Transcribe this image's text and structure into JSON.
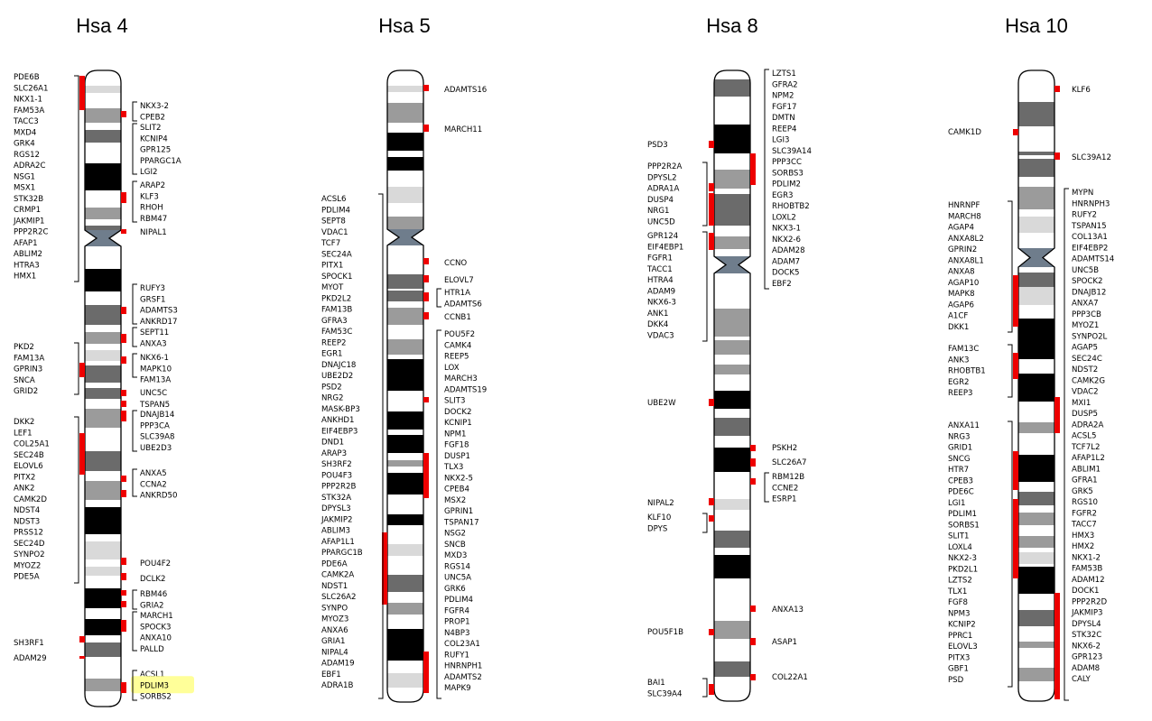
{
  "figure": {
    "chromosomes": [
      {
        "id": "hsa4",
        "title": "Hsa 4",
        "left_groups": [
          {
            "genes": [
              "PDE6B",
              "SLC26A1",
              "NKX1-1",
              "FAM53A",
              "TACC3",
              "MXD4",
              "GRK4",
              "RGS12",
              "ADRA2C",
              "NSG1",
              "MSX1",
              "STK32B",
              "CRMP1",
              "JAKMIP1",
              "PPP2R2C",
              "AFAP1",
              "ABLIM2",
              "HTRA3",
              "HMX1"
            ]
          },
          {
            "genes": [
              "PKD2",
              "FAM13A",
              "GPRIN3",
              "SNCA",
              "GRID2"
            ]
          },
          {
            "genes": [
              "DKK2",
              "LEF1",
              "COL25A1",
              "SEC24B",
              "ELOVL6",
              "PITX2",
              "ANK2",
              "CAMK2D",
              "NDST4",
              "NDST3",
              "PRSS12",
              "SEC24D",
              "SYNPO2",
              "MYOZ2",
              "PDE5A"
            ]
          },
          {
            "genes": [
              "SH3RF1"
            ]
          },
          {
            "genes": [
              "ADAM29"
            ]
          }
        ],
        "right_groups": [
          {
            "genes": [
              "NKX3-2",
              "CPEB2"
            ]
          },
          {
            "genes": [
              "SLIT2",
              "KCNIP4",
              "GPR125",
              "PPARGC1A",
              "LGI2"
            ]
          },
          {
            "genes": [
              "ARAP2",
              "KLF3",
              "RHOH",
              "RBM47"
            ]
          },
          {
            "genes": [
              "NIPAL1"
            ]
          },
          {
            "genes": [
              "RUFY3",
              "GRSF1",
              "ADAMTS3",
              "ANKRD17"
            ]
          },
          {
            "genes": [
              "SEPT11",
              "ANXA3"
            ]
          },
          {
            "genes": [
              "NKX6-1",
              "MAPK10",
              "FAM13A"
            ]
          },
          {
            "genes": [
              "UNC5C"
            ]
          },
          {
            "genes": [
              "TSPAN5"
            ]
          },
          {
            "genes": [
              "DNAJB14",
              "PPP3CA",
              "SLC39A8",
              "UBE2D3"
            ]
          },
          {
            "genes": [
              "ANXA5",
              "CCNA2",
              "ANKRD50"
            ]
          },
          {
            "genes": [
              "POU4F2"
            ]
          },
          {
            "genes": [
              "DCLK2"
            ]
          },
          {
            "genes": [
              "RBM46",
              "GRIA2"
            ]
          },
          {
            "genes": [
              "MARCH1",
              "SPOCK3",
              "ANXA10",
              "PALLD"
            ]
          },
          {
            "genes": [
              "ACSL1",
              "PDLIM3",
              "SORBS2"
            ]
          }
        ]
      },
      {
        "id": "hsa5",
        "title": "Hsa 5",
        "left_groups": [
          {
            "genes": [
              "ACSL6",
              "PDLIM4",
              "SEPT8",
              "VDAC1",
              "TCF7",
              "SEC24A",
              "PITX1",
              "SPOCK1",
              "MYOT",
              "PKD2L2",
              "FAM13B",
              "GFRA3",
              "FAM53C",
              "REEP2",
              "EGR1",
              "DNAJC18",
              "UBE2D2",
              "PSD2",
              "NRG2",
              "MASK-BP3",
              "ANKHD1",
              "EIF4EBP3",
              "DND1",
              "ARAP3",
              "SH3RF2",
              "POU4F3",
              "PPP2R2B",
              "STK32A",
              "DPYSL3",
              "JAKMIP2",
              "ABLIM3",
              "AFAP1L1",
              "PPARGC1B",
              "PDE6A",
              "CAMK2A",
              "NDST1",
              "SLC26A2",
              "SYNPO",
              "MYOZ3",
              "ANXA6",
              "GRIA1",
              "NIPAL4",
              "ADAM19",
              "EBF1",
              "ADRA1B"
            ]
          }
        ],
        "right_groups": [
          {
            "genes": [
              "ADAMTS16"
            ]
          },
          {
            "genes": [
              "MARCH11"
            ]
          },
          {
            "genes": [
              "CCNO"
            ]
          },
          {
            "genes": [
              "ELOVL7"
            ]
          },
          {
            "genes": [
              "HTR1A",
              "ADAMTS6"
            ]
          },
          {
            "genes": [
              "CCNB1"
            ]
          },
          {
            "genes": [
              "POU5F2",
              "CAMK4",
              "REEP5",
              "LOX",
              "MARCH3",
              "ADAMTS19",
              "SLIT3",
              "DOCK2",
              "KCNIP1",
              "NPM1",
              "FGF18",
              "DUSP1",
              "TLX3",
              "NKX2-5",
              "CPEB4",
              "MSX2",
              "GPRIN1",
              "TSPAN17",
              "NSG2",
              "SNCB",
              "MXD3",
              "RGS14",
              "UNC5A",
              "GRK6",
              "PDLIM4",
              "FGFR4",
              "PROP1",
              "N4BP3",
              "COL23A1",
              "RUFY1",
              "HNRNPH1",
              "ADAMTS2",
              "MAPK9"
            ]
          }
        ]
      },
      {
        "id": "hsa8",
        "title": "Hsa 8",
        "left_groups": [
          {
            "genes": [
              "PSD3"
            ]
          },
          {
            "genes": [
              "PPP2R2A",
              "DPYSL2",
              "ADRA1A",
              "DUSP4",
              "NRG1",
              "UNC5D"
            ]
          },
          {
            "genes": [
              "GPR124",
              "EIF4EBP1",
              "FGFR1",
              "TACC1",
              "HTRA4",
              "ADAM9",
              "NKX6-3",
              "ANK1",
              "DKK4",
              "VDAC3"
            ]
          },
          {
            "genes": [
              "UBE2W"
            ]
          },
          {
            "genes": [
              "NIPAL2"
            ]
          },
          {
            "genes": [
              "KLF10",
              "DPYS"
            ]
          },
          {
            "genes": [
              "POU5F1B"
            ]
          },
          {
            "genes": [
              "BAI1",
              "SLC39A4"
            ]
          }
        ],
        "right_groups": [
          {
            "genes": [
              "LZTS1",
              "GFRA2",
              "NPM2",
              "FGF17",
              "DMTN",
              "REEP4",
              "LGI3",
              "SLC39A14",
              "PPP3CC",
              "SORBS3",
              "PDLIM2",
              "EGR3",
              "RHOBTB2",
              "LOXL2",
              "NKX3-1",
              "NKX2-6",
              "ADAM28",
              "ADAM7",
              "DOCK5",
              "EBF2"
            ]
          },
          {
            "genes": [
              "PSKH2"
            ]
          },
          {
            "genes": [
              "SLC26A7"
            ]
          },
          {
            "genes": [
              "RBM12B",
              "CCNE2",
              "ESRP1"
            ]
          },
          {
            "genes": [
              "ANXA13"
            ]
          },
          {
            "genes": [
              "ASAP1"
            ]
          },
          {
            "genes": [
              "COL22A1"
            ]
          }
        ]
      },
      {
        "id": "hsa10",
        "title": "Hsa 10",
        "left_groups": [
          {
            "genes": [
              "CAMK1D"
            ]
          },
          {
            "genes": [
              "HNRNPF",
              "MARCH8",
              "AGAP4",
              "ANXA8L2",
              "GPRIN2",
              "ANXA8L1",
              "ANXA8",
              "AGAP10",
              "MAPK8",
              "AGAP6",
              "A1CF",
              "DKK1"
            ]
          },
          {
            "genes": [
              "FAM13C",
              "ANK3",
              "RHOBTB1",
              "EGR2",
              "REEP3"
            ]
          },
          {
            "genes": [
              "ANXA11",
              "NRG3",
              "GRID1",
              "SNCG",
              "HTR7",
              "CPEB3",
              "PDE6C",
              "LGI1",
              "PDLIM1",
              "SORBS1",
              "SLIT1",
              "LOXL4",
              "NKX2-3",
              "PKD2L1",
              "LZTS2",
              "TLX1",
              "FGF8",
              "NPM3",
              "KCNIP2",
              "PPRC1",
              "ELOVL3",
              "PITX3",
              "GBF1",
              "PSD"
            ]
          }
        ],
        "right_groups": [
          {
            "genes": [
              "KLF6"
            ]
          },
          {
            "genes": [
              "SLC39A12"
            ]
          },
          {
            "genes": [
              "MYPN",
              "HNRNPH3",
              "RUFY2",
              "TSPAN15",
              "COL13A1",
              "EIF4EBP2",
              "ADAMTS14",
              "UNC5B",
              "SPOCK2",
              "DNAJB12",
              "ANXA7",
              "PPP3CB",
              "MYOZ1",
              "SYNPO2L",
              "AGAP5",
              "SEC24C",
              "NDST2",
              "CAMK2G",
              "VDAC2",
              "MXI1",
              "DUSP5",
              "ADRA2A",
              "ACSL5",
              "TCF7L2",
              "AFAP1L2",
              "ABLIM1",
              "GFRA1",
              "GRK5",
              "RGS10",
              "FGFR2",
              "TACC7",
              "HMX3",
              "HMX2",
              "NKX1-2",
              "FAM53B",
              "ADAM12",
              "DOCK1",
              "PPP2R2D",
              "JAKMIP3",
              "DPYSL4",
              "STK32C",
              "NKX6-2",
              "GPR123",
              "ADAM8",
              "CALY"
            ]
          }
        ]
      }
    ],
    "highlighted_gene": "PDLIM3",
    "colors": {
      "marker": "#ee0000",
      "highlight": "#ffff99",
      "band_dark": "#000000",
      "band_mid": "#6b6b6b",
      "band_light": "#9b9b9b",
      "band_pale": "#d9d9d9",
      "centromere": "#6f7d8c",
      "outline": "#000000"
    }
  }
}
